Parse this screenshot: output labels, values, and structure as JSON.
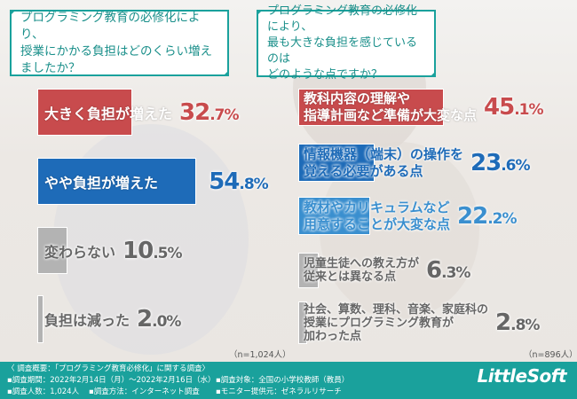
{
  "left": {
    "question": [
      "プログラミング教育の必修化により、",
      "授業にかかる負担はどのくらい増えましたか？"
    ],
    "sample": "（n=1,024人）",
    "items": [
      {
        "label": "大きく負担が増えた",
        "int": "32",
        "dec": ".7%",
        "value": 32.7,
        "color": "#c84b4d"
      },
      {
        "label": "やや負担が増えた",
        "int": "54",
        "dec": ".8%",
        "value": 54.8,
        "color": "#1e6bb8"
      },
      {
        "label": "変わらない",
        "int": "10",
        "dec": ".5%",
        "value": 10.5,
        "color": "#b3b3b3"
      },
      {
        "label": "負担は減った",
        "int": "2",
        "dec": ".0%",
        "value": 2.0,
        "color": "#b3b3b3"
      }
    ]
  },
  "right": {
    "question": [
      "プログラミング教育の必修化により、",
      "最も大きな負担を感じているのは",
      "どのような点ですか？"
    ],
    "sample": "（n=896人）",
    "items": [
      {
        "label": [
          "教科内容の理解や",
          "指導計画など準備が大変な点"
        ],
        "int": "45",
        "dec": ".1%",
        "value": 45.1,
        "color": "#c84b4d"
      },
      {
        "label": [
          "情報機器（端末）の操作を",
          "覚える必要がある点"
        ],
        "int": "23",
        "dec": ".6%",
        "value": 23.6,
        "color": "#1e6bb8"
      },
      {
        "label": [
          "教材やカリキュラムなど",
          "用意することが大変な点"
        ],
        "int": "22",
        "dec": ".2%",
        "value": 22.2,
        "color": "#3a8fcf"
      },
      {
        "label": [
          "児童生徒への教え方が",
          "従来とは異なる点"
        ],
        "int": "6",
        "dec": ".3%",
        "value": 6.3,
        "color": "#b3b3b3"
      },
      {
        "label": [
          "社会、算数、理科、音楽、家庭科の",
          "授業にプログラミング教育が",
          "加わった点"
        ],
        "int": "2",
        "dec": ".8%",
        "value": 2.8,
        "color": "#b3b3b3"
      }
    ]
  },
  "footer": {
    "title": "〈 調査概要：「プログラミング教育必修化」に関する調査〉",
    "period": "▪調査期間：2022年2月14日（月）～2022年2月16日（水）",
    "target": "▪調査対象：全国の小学校教師（教員）",
    "count": "▪調査人数：1,024人",
    "method": "▪調査方法：インターネット調査",
    "provider": "▪モニター提供元：ゼネラルリサーチ",
    "logo": "LittleSoft"
  },
  "colors": {
    "teal": "#1aa19c",
    "red": "#c84b4d",
    "blue": "#1e6bb8",
    "gray": "#b3b3b3"
  }
}
